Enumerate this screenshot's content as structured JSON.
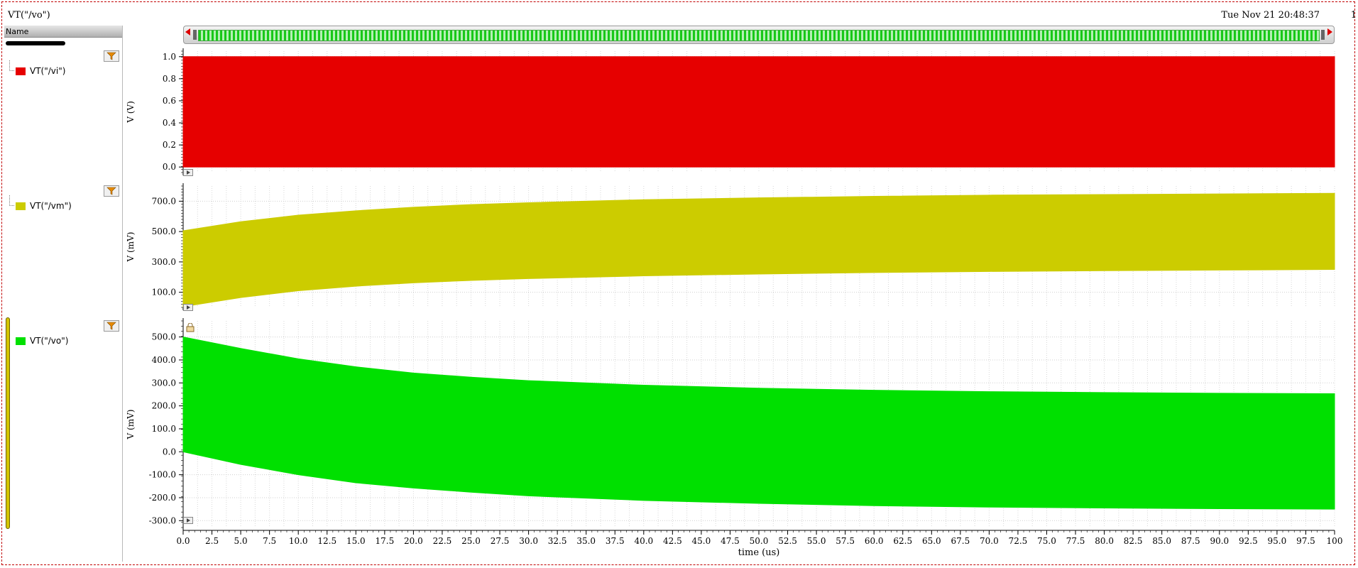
{
  "window": {
    "title": "VT(\"/vo\")",
    "date": "Tue Nov 21 20:48:37",
    "corner": "1"
  },
  "panel": {
    "header": "Name"
  },
  "legend": [
    {
      "label": "VT(\"/vi\")",
      "color": "#e60000"
    },
    {
      "label": "VT(\"/vm\")",
      "color": "#cccc00"
    },
    {
      "label": "VT(\"/vo\")",
      "color": "#00e000"
    }
  ],
  "chart_data": [
    {
      "type": "area",
      "name": "VT(\"/vi\")",
      "ylabel": "V (V)",
      "ylim": [
        -0.05,
        1.05
      ],
      "yticks": [
        "0.0",
        "0.2",
        "0.4",
        "0.6",
        "0.8",
        "1.0"
      ],
      "x": [
        0,
        100
      ],
      "upper": [
        1.0,
        1.0
      ],
      "lower": [
        0.0,
        0.0
      ],
      "color": "#e60000"
    },
    {
      "type": "area",
      "name": "VT(\"/vm\")",
      "ylabel": "V (mV)",
      "ylim": [
        0,
        800
      ],
      "yticks": [
        "100.0",
        "300.0",
        "500.0",
        "700.0"
      ],
      "x": [
        0,
        5,
        10,
        15,
        20,
        25,
        30,
        40,
        50,
        60,
        70,
        80,
        90,
        100
      ],
      "upper": [
        505,
        565,
        608,
        637,
        660,
        678,
        690,
        710,
        722,
        732,
        740,
        744,
        748,
        752
      ],
      "lower": [
        5,
        65,
        110,
        140,
        162,
        178,
        190,
        208,
        220,
        230,
        237,
        242,
        246,
        250
      ],
      "color": "#cccc00"
    },
    {
      "type": "area",
      "name": "VT(\"/vo\")",
      "ylabel": "V (mV)",
      "ylim": [
        -330,
        570
      ],
      "yticks": [
        "-300.0",
        "-200.0",
        "-100.0",
        "0.0",
        "100.0",
        "200.0",
        "300.0",
        "400.0",
        "500.0"
      ],
      "x": [
        0,
        5,
        10,
        15,
        20,
        25,
        30,
        40,
        50,
        60,
        70,
        80,
        90,
        100
      ],
      "upper": [
        500,
        450,
        405,
        370,
        343,
        325,
        310,
        290,
        277,
        268,
        262,
        258,
        255,
        253
      ],
      "lower": [
        0,
        -55,
        -100,
        -135,
        -158,
        -176,
        -192,
        -212,
        -225,
        -235,
        -241,
        -245,
        -248,
        -250
      ],
      "color": "#00e000"
    }
  ],
  "xaxis": {
    "label": "time (us)",
    "range": [
      0,
      100
    ],
    "ticks": [
      "0.0",
      "2.5",
      "5.0",
      "7.5",
      "10.0",
      "12.5",
      "15.0",
      "17.5",
      "20.0",
      "22.5",
      "25.0",
      "27.5",
      "30.0",
      "32.5",
      "35.0",
      "37.5",
      "40.0",
      "42.5",
      "45.0",
      "47.5",
      "50.0",
      "52.5",
      "55.0",
      "57.5",
      "60.0",
      "62.5",
      "65.0",
      "67.5",
      "70.0",
      "72.5",
      "75.0",
      "77.5",
      "80.0",
      "82.5",
      "85.0",
      "87.5",
      "90.0",
      "92.5",
      "95.0",
      "97.5",
      "100"
    ]
  }
}
